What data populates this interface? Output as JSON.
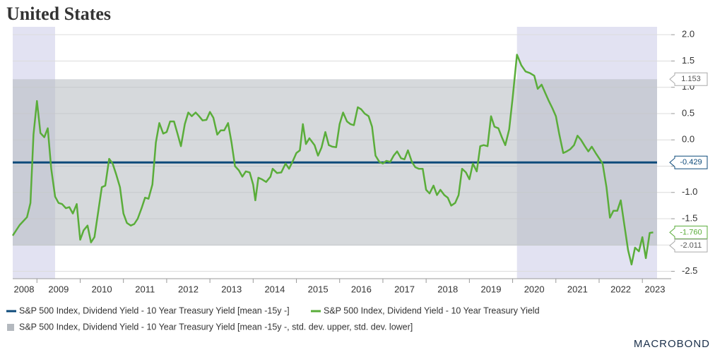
{
  "chart_data": {
    "type": "line",
    "title": "United States",
    "xlim": [
      2008.44,
      2023.34
    ],
    "ylim": [
      -2.6,
      2.15
    ],
    "xticks": [
      2008,
      2009,
      2010,
      2011,
      2012,
      2013,
      2014,
      2015,
      2016,
      2017,
      2018,
      2019,
      2020,
      2021,
      2022,
      2023
    ],
    "yticks": [
      {
        "value": 2,
        "label": "2.0"
      },
      1.5,
      {
        "value": 1,
        "label": "1.0"
      },
      0.5,
      {
        "value": 0,
        "label": "0.0"
      },
      -0.5,
      {
        "value": -1,
        "label": "-1.0"
      },
      -1.5,
      {
        "value": -2,
        "label": "-2.0"
      },
      -2.5
    ],
    "grid": true,
    "shaded_periods": [
      [
        2008.44,
        2009.42
      ],
      [
        2020.1,
        2023.34
      ]
    ],
    "shade_color": "#e2e2f2",
    "band": {
      "name": "S&P 500 Index, Dividend Yield - 10 Year Treasury Yield [mean -15y -, std. dev. upper, std. dev. lower]",
      "color": "#b4b9bf",
      "upper": 1.153,
      "lower": -2.011
    },
    "mean": {
      "name": "S&P 500 Index, Dividend Yield - 10 Year Treasury Yield [mean -15y -]",
      "color": "#0d4a7a",
      "value": -0.429
    },
    "series": [
      {
        "name": "S&P 500 Index, Dividend Yield - 10 Year Treasury Yield",
        "color": "#5aad3a",
        "end_label": "-1.760",
        "x": [
          2008.44,
          2008.6,
          2008.77,
          2008.85,
          2008.92,
          2009.0,
          2009.08,
          2009.17,
          2009.25,
          2009.33,
          2009.42,
          2009.5,
          2009.58,
          2009.67,
          2009.75,
          2009.83,
          2009.92,
          2010.0,
          2010.08,
          2010.17,
          2010.25,
          2010.33,
          2010.42,
          2010.5,
          2010.58,
          2010.67,
          2010.75,
          2010.83,
          2010.92,
          2011.0,
          2011.08,
          2011.17,
          2011.25,
          2011.33,
          2011.42,
          2011.5,
          2011.58,
          2011.67,
          2011.75,
          2011.83,
          2011.92,
          2012.0,
          2012.08,
          2012.17,
          2012.25,
          2012.33,
          2012.42,
          2012.5,
          2012.58,
          2012.67,
          2012.75,
          2012.83,
          2012.92,
          2013.0,
          2013.08,
          2013.17,
          2013.25,
          2013.33,
          2013.42,
          2013.5,
          2013.58,
          2013.67,
          2013.75,
          2013.83,
          2013.92,
          2014.0,
          2014.05,
          2014.12,
          2014.2,
          2014.3,
          2014.4,
          2014.45,
          2014.55,
          2014.65,
          2014.75,
          2014.83,
          2014.92,
          2015.0,
          2015.08,
          2015.15,
          2015.22,
          2015.3,
          2015.42,
          2015.5,
          2015.58,
          2015.67,
          2015.75,
          2015.83,
          2015.92,
          2016.0,
          2016.08,
          2016.17,
          2016.25,
          2016.33,
          2016.42,
          2016.5,
          2016.58,
          2016.67,
          2016.75,
          2016.83,
          2016.92,
          2017.0,
          2017.08,
          2017.17,
          2017.25,
          2017.33,
          2017.42,
          2017.5,
          2017.58,
          2017.67,
          2017.75,
          2017.83,
          2017.92,
          2018.0,
          2018.08,
          2018.17,
          2018.25,
          2018.33,
          2018.42,
          2018.5,
          2018.58,
          2018.67,
          2018.75,
          2018.83,
          2018.92,
          2019.0,
          2019.08,
          2019.17,
          2019.25,
          2019.33,
          2019.42,
          2019.5,
          2019.58,
          2019.67,
          2019.75,
          2019.83,
          2019.92,
          2020.0,
          2020.1,
          2020.2,
          2020.3,
          2020.4,
          2020.5,
          2020.58,
          2020.67,
          2020.75,
          2020.83,
          2020.92,
          2021.0,
          2021.08,
          2021.17,
          2021.25,
          2021.33,
          2021.42,
          2021.5,
          2021.58,
          2021.67,
          2021.75,
          2021.83,
          2021.92,
          2022.0,
          2022.08,
          2022.17,
          2022.25,
          2022.33,
          2022.42,
          2022.5,
          2022.58,
          2022.67,
          2022.75,
          2022.83,
          2022.92,
          2023.0,
          2023.08,
          2023.17,
          2023.25
        ],
        "values": [
          -1.82,
          -1.62,
          -1.47,
          -1.2,
          0.1,
          0.74,
          0.13,
          0.05,
          0.22,
          -0.55,
          -1.08,
          -1.2,
          -1.22,
          -1.3,
          -1.28,
          -1.4,
          -1.22,
          -1.9,
          -1.72,
          -1.63,
          -1.95,
          -1.85,
          -1.35,
          -0.9,
          -0.87,
          -0.36,
          -0.45,
          -0.65,
          -0.9,
          -1.4,
          -1.58,
          -1.63,
          -1.6,
          -1.5,
          -1.3,
          -1.1,
          -1.12,
          -0.85,
          -0.05,
          0.32,
          0.12,
          0.15,
          0.35,
          0.35,
          0.12,
          -0.12,
          0.3,
          0.52,
          0.45,
          0.52,
          0.45,
          0.37,
          0.38,
          0.53,
          0.42,
          0.1,
          0.18,
          0.18,
          0.32,
          -0.05,
          -0.5,
          -0.58,
          -0.7,
          -0.6,
          -0.62,
          -0.85,
          -1.15,
          -0.72,
          -0.75,
          -0.8,
          -0.7,
          -0.55,
          -0.63,
          -0.62,
          -0.45,
          -0.55,
          -0.4,
          -0.25,
          -0.2,
          0.3,
          -0.08,
          0.03,
          -0.1,
          -0.3,
          -0.15,
          0.15,
          -0.1,
          -0.13,
          -0.14,
          0.3,
          0.52,
          0.35,
          0.3,
          0.28,
          0.62,
          0.58,
          0.5,
          0.45,
          0.25,
          -0.3,
          -0.42,
          -0.45,
          -0.4,
          -0.42,
          -0.3,
          -0.22,
          -0.35,
          -0.37,
          -0.2,
          -0.42,
          -0.52,
          -0.55,
          -0.55,
          -0.95,
          -1.02,
          -0.87,
          -1.05,
          -0.95,
          -1.05,
          -1.1,
          -1.25,
          -1.2,
          -1.05,
          -0.55,
          -0.62,
          -0.75,
          -0.45,
          -0.6,
          -0.12,
          -0.1,
          -0.12,
          0.45,
          0.25,
          0.22,
          0.05,
          -0.1,
          0.2,
          0.8,
          1.62,
          1.42,
          1.3,
          1.27,
          1.22,
          0.97,
          1.05,
          0.9,
          0.75,
          0.6,
          0.45,
          0.1,
          -0.25,
          -0.22,
          -0.18,
          -0.1,
          0.08,
          0.0,
          -0.12,
          -0.22,
          -0.13,
          -0.25,
          -0.35,
          -0.45,
          -0.9,
          -1.48,
          -1.35,
          -1.35,
          -1.15,
          -1.6,
          -2.1,
          -2.37,
          -2.05,
          -2.12,
          -1.85,
          -2.25,
          -1.77,
          -1.76
        ]
      }
    ],
    "source": "MACROBOND"
  }
}
